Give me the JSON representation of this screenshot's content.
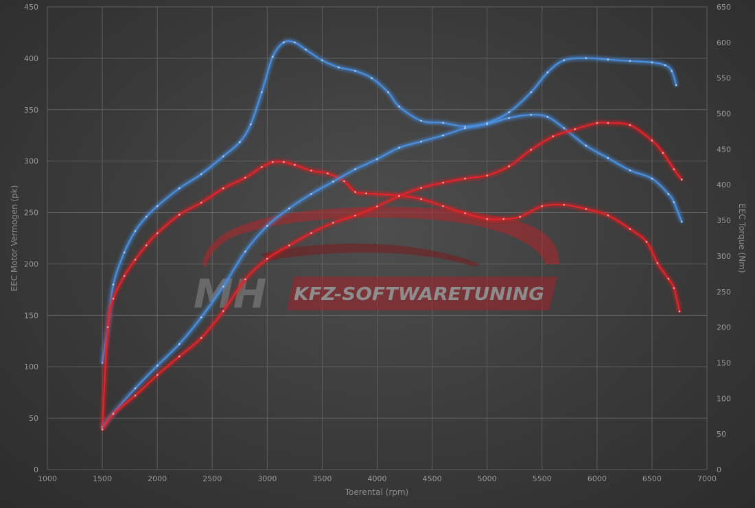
{
  "chart_data": {
    "type": "line",
    "xlabel": "Toerental (rpm)",
    "ylabel_left": "EEC Motor Vermogen (pk)",
    "ylabel_right": "EEC Torque (Nm)",
    "xlim": [
      1000,
      7000
    ],
    "ylim_left": [
      0,
      450
    ],
    "ylim_right": [
      0,
      650
    ],
    "x_ticks": [
      "1000",
      "1500",
      "2000",
      "2500",
      "3000",
      "3500",
      "4000",
      "4500",
      "5000",
      "5500",
      "6000",
      "6500",
      "7000"
    ],
    "y_left_ticks": [
      "0",
      "50",
      "100",
      "150",
      "200",
      "250",
      "300",
      "350",
      "400",
      "450"
    ],
    "y_right_ticks": [
      "0",
      "50",
      "100",
      "150",
      "200",
      "250",
      "300",
      "350",
      "400",
      "450",
      "500",
      "550",
      "600",
      "650"
    ],
    "grid": true,
    "watermark": {
      "logo": "MH",
      "text": "KFZ-SOFTWARETUNING"
    },
    "colors": {
      "tuned": "#4a8fe0",
      "stock": "#e0262a"
    },
    "series": [
      {
        "name": "",
        "axis": "right",
        "color_key": "tuned",
        "x": [
          1500,
          1550,
          1600,
          1700,
          1800,
          1900,
          2000,
          2200,
          2400,
          2600,
          2750,
          2850,
          2950,
          3050,
          3150,
          3250,
          3350,
          3500,
          3650,
          3800,
          3950,
          4100,
          4200,
          4400,
          4600,
          4800,
          5000,
          5200,
          5400,
          5550,
          5700,
          5900,
          6100,
          6300,
          6500,
          6620,
          6680,
          6720
        ],
        "y": [
          150,
          200,
          260,
          305,
          335,
          355,
          370,
          395,
          415,
          440,
          460,
          485,
          530,
          580,
          600,
          600,
          590,
          575,
          565,
          560,
          550,
          530,
          510,
          490,
          487,
          482,
          487,
          502,
          530,
          558,
          575,
          578,
          576,
          574,
          572,
          568,
          560,
          540
        ]
      },
      {
        "name": "",
        "axis": "right",
        "color_key": "stock",
        "x": [
          1500,
          1550,
          1600,
          1700,
          1800,
          1900,
          2000,
          2200,
          2400,
          2600,
          2800,
          2950,
          3050,
          3150,
          3250,
          3400,
          3550,
          3700,
          3800,
          3900,
          4200,
          4400,
          4600,
          4800,
          5000,
          5150,
          5300,
          5500,
          5700,
          5900,
          6100,
          6300,
          6450,
          6550,
          6650,
          6700,
          6750
        ],
        "y": [
          60,
          200,
          240,
          272,
          295,
          315,
          332,
          358,
          375,
          395,
          410,
          425,
          432,
          432,
          428,
          420,
          416,
          405,
          390,
          388,
          385,
          380,
          370,
          360,
          352,
          352,
          355,
          370,
          372,
          366,
          357,
          338,
          320,
          290,
          268,
          255,
          222
        ]
      },
      {
        "name": "",
        "axis": "left",
        "color_key": "tuned",
        "x": [
          1500,
          1600,
          1800,
          2000,
          2200,
          2400,
          2600,
          2800,
          3000,
          3200,
          3400,
          3600,
          3800,
          4000,
          4200,
          4400,
          4600,
          4800,
          5000,
          5200,
          5400,
          5550,
          5700,
          5900,
          6100,
          6300,
          6500,
          6650,
          6700,
          6770
        ],
        "y": [
          41,
          55,
          79,
          101,
          122,
          148,
          178,
          212,
          237,
          254,
          268,
          280,
          292,
          302,
          313,
          319,
          325,
          332,
          336,
          342,
          345,
          343,
          332,
          315,
          303,
          291,
          283,
          268,
          260,
          241
        ]
      },
      {
        "name": "",
        "axis": "left",
        "color_key": "stock",
        "x": [
          1500,
          1600,
          1800,
          2000,
          2200,
          2400,
          2600,
          2800,
          3000,
          3200,
          3400,
          3600,
          3800,
          4000,
          4200,
          4400,
          4600,
          4800,
          5000,
          5200,
          5400,
          5600,
          5800,
          6000,
          6100,
          6300,
          6500,
          6600,
          6700,
          6770
        ],
        "y": [
          39,
          54,
          72,
          92,
          110,
          128,
          154,
          185,
          205,
          218,
          230,
          240,
          247,
          256,
          266,
          274,
          279,
          283,
          286,
          295,
          311,
          324,
          331,
          337,
          337,
          335,
          320,
          308,
          292,
          282
        ]
      }
    ]
  }
}
